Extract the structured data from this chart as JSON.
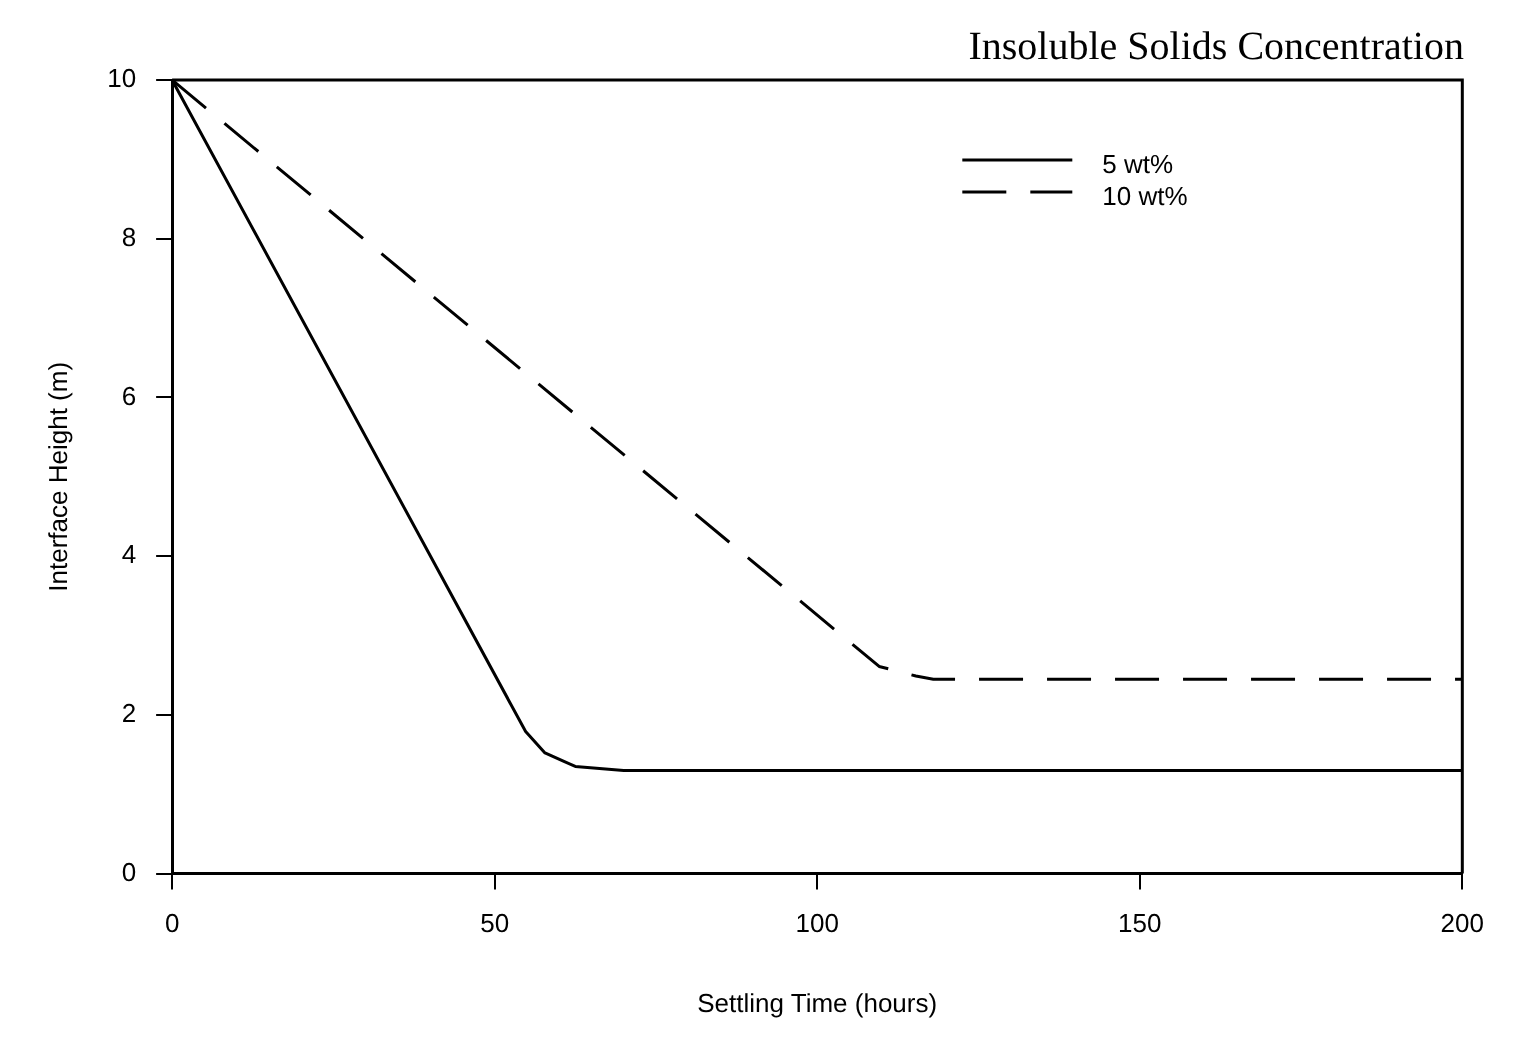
{
  "chart_data": {
    "type": "line",
    "title": "Insoluble Solids Concentration",
    "xlabel": "Settling Time (hours)",
    "ylabel": "Interface Height (m)",
    "xlim": [
      0,
      200
    ],
    "xticks": [
      0,
      50,
      100,
      150,
      200
    ],
    "ylim": [
      0,
      10
    ],
    "yticks": [
      0,
      2,
      4,
      6,
      8,
      10
    ],
    "grid": false,
    "legend": "top right",
    "marker": "none",
    "series": [
      {
        "name": "5 wt%",
        "color": "#000000",
        "line_style": "solid",
        "x": [
          0,
          54.8,
          57.8,
          62.5,
          70,
          100,
          150,
          200
        ],
        "values": [
          10,
          1.79,
          1.52,
          1.35,
          1.3,
          1.3,
          1.3,
          1.3
        ]
      },
      {
        "name": "10 wt%",
        "color": "#000000",
        "line_style": "dashed",
        "x": [
          0,
          109.6,
          115.3,
          118,
          150,
          200
        ],
        "values": [
          10,
          2.61,
          2.49,
          2.45,
          2.45,
          2.45
        ]
      }
    ]
  }
}
